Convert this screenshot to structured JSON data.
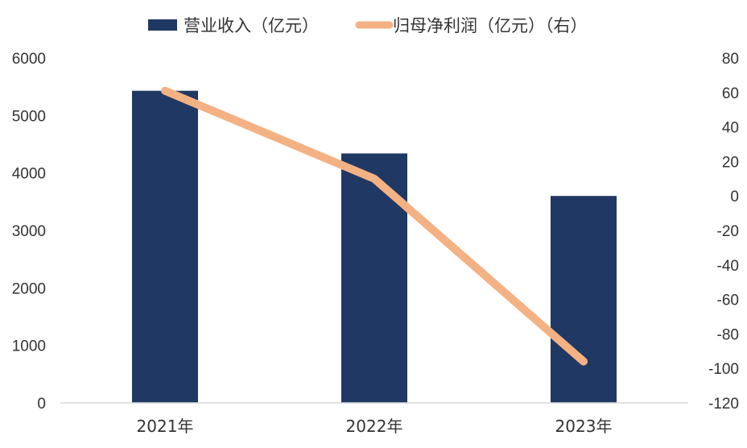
{
  "chart_data": {
    "type": "bar",
    "categories": [
      "2021年",
      "2022年",
      "2023年"
    ],
    "series": [
      {
        "name": "营业收入（亿元）",
        "type": "bar",
        "axis": "left",
        "values": [
          5430,
          4340,
          3600
        ]
      },
      {
        "name": "归母净利润（亿元）（右）",
        "type": "line",
        "axis": "right",
        "values": [
          61,
          10,
          -96
        ]
      }
    ],
    "yleft": {
      "min": 0,
      "max": 6000,
      "ticks": [
        0,
        1000,
        2000,
        3000,
        4000,
        5000,
        6000
      ]
    },
    "yright": {
      "min": -120,
      "max": 80,
      "ticks": [
        -120,
        -100,
        -80,
        -60,
        -40,
        -20,
        0,
        20,
        40,
        60,
        80
      ]
    },
    "legend_position": "top-center",
    "grid": false,
    "colors": {
      "bar": "#203864",
      "line": "#F4B183",
      "axis": "#d9d9d9"
    }
  }
}
